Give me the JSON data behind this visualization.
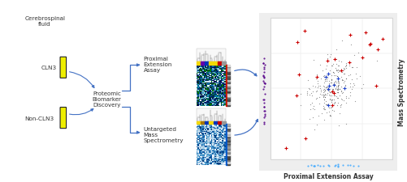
{
  "bg_color": "#f0f0f0",
  "white": "#ffffff",
  "arrow_color": "#4472c4",
  "text_color": "#333333",
  "label_csf": "Cerebrospinal\nfluid",
  "label_cln3": "CLN3",
  "label_noncln3": "Non-CLN3",
  "label_proteomic": "Proteomic\nBiomarker\nDiscovery",
  "label_proximal": "Proximal\nExtension\nAssay",
  "label_untargeted": "Untargeted\nMass\nSpectrometry",
  "label_mass_spec": "Mass Spectrometry",
  "label_proximal_assay": "Proximal Extension Assay",
  "figsize": [
    5.02,
    2.26
  ],
  "dpi": 100
}
